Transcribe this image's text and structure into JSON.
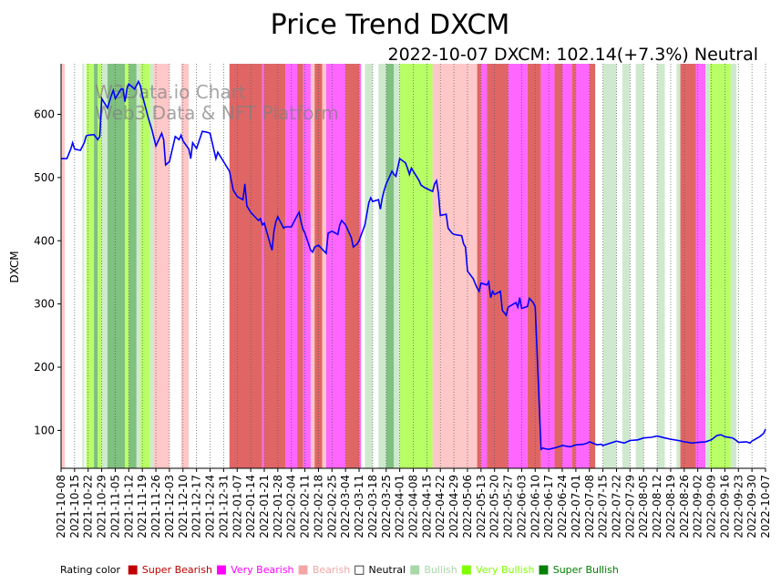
{
  "chart_data": {
    "type": "line",
    "title": "Price Trend DXCM",
    "subtitle": "2022-10-07 DXCM: 102.14(+7.3%) Neutral",
    "ylabel": "DXCM",
    "xlabel": "",
    "watermark_line1": "W3Data.io Chart",
    "watermark_line2": "Web3 Data & NFT Platform",
    "ylim": [
      40,
      680
    ],
    "yticks": [
      100,
      200,
      300,
      400,
      500,
      600
    ],
    "x_start": "2021-10-08",
    "x_end": "2022-10-07",
    "xticks": [
      "2021-10-08",
      "2021-10-15",
      "2021-10-22",
      "2021-10-29",
      "2021-11-05",
      "2021-11-12",
      "2021-11-19",
      "2021-11-26",
      "2021-12-03",
      "2021-12-10",
      "2021-12-17",
      "2021-12-24",
      "2021-12-31",
      "2022-01-07",
      "2022-01-14",
      "2022-01-21",
      "2022-01-28",
      "2022-02-04",
      "2022-02-11",
      "2022-02-18",
      "2022-02-25",
      "2022-03-04",
      "2022-03-11",
      "2022-03-18",
      "2022-03-25",
      "2022-04-01",
      "2022-04-08",
      "2022-04-15",
      "2022-04-22",
      "2022-04-29",
      "2022-05-06",
      "2022-05-13",
      "2022-05-20",
      "2022-05-27",
      "2022-06-03",
      "2022-06-10",
      "2022-06-17",
      "2022-06-24",
      "2022-07-01",
      "2022-07-08",
      "2022-07-15",
      "2022-07-22",
      "2022-07-29",
      "2022-08-05",
      "2022-08-12",
      "2022-08-19",
      "2022-08-26",
      "2022-09-02",
      "2022-09-09",
      "2022-09-16",
      "2022-09-23",
      "2022-09-30",
      "2022-10-07"
    ],
    "series": [
      {
        "name": "DXCM",
        "color": "#0000ff",
        "points": [
          [
            "2021-10-08",
            530
          ],
          [
            "2021-10-11",
            530
          ],
          [
            "2021-10-13",
            545
          ],
          [
            "2021-10-14",
            555
          ],
          [
            "2021-10-15",
            545
          ],
          [
            "2021-10-18",
            543
          ],
          [
            "2021-10-20",
            555
          ],
          [
            "2021-10-21",
            566
          ],
          [
            "2021-10-22",
            567
          ],
          [
            "2021-10-25",
            568
          ],
          [
            "2021-10-27",
            560
          ],
          [
            "2021-10-28",
            565
          ],
          [
            "2021-10-29",
            625
          ],
          [
            "2021-11-01",
            610
          ],
          [
            "2021-11-03",
            630
          ],
          [
            "2021-11-04",
            638
          ],
          [
            "2021-11-05",
            625
          ],
          [
            "2021-11-08",
            640
          ],
          [
            "2021-11-09",
            640
          ],
          [
            "2021-11-10",
            620
          ],
          [
            "2021-11-11",
            640
          ],
          [
            "2021-11-12",
            648
          ],
          [
            "2021-11-15",
            640
          ],
          [
            "2021-11-17",
            652
          ],
          [
            "2021-11-18",
            645
          ],
          [
            "2021-11-19",
            630
          ],
          [
            "2021-11-22",
            595
          ],
          [
            "2021-11-24",
            575
          ],
          [
            "2021-11-26",
            550
          ],
          [
            "2021-11-29",
            570
          ],
          [
            "2021-11-30",
            560
          ],
          [
            "2021-12-01",
            520
          ],
          [
            "2021-12-03",
            525
          ],
          [
            "2021-12-06",
            565
          ],
          [
            "2021-12-08",
            560
          ],
          [
            "2021-12-09",
            567
          ],
          [
            "2021-12-10",
            558
          ],
          [
            "2021-12-13",
            545
          ],
          [
            "2021-12-14",
            530
          ],
          [
            "2021-12-15",
            555
          ],
          [
            "2021-12-17",
            546
          ],
          [
            "2021-12-20",
            573
          ],
          [
            "2021-12-22",
            572
          ],
          [
            "2021-12-24",
            570
          ],
          [
            "2021-12-27",
            530
          ],
          [
            "2021-12-28",
            540
          ],
          [
            "2021-12-31",
            525
          ],
          [
            "2022-01-03",
            510
          ],
          [
            "2022-01-05",
            480
          ],
          [
            "2022-01-07",
            470
          ],
          [
            "2022-01-10",
            465
          ],
          [
            "2022-01-11",
            490
          ],
          [
            "2022-01-12",
            455
          ],
          [
            "2022-01-14",
            445
          ],
          [
            "2022-01-18",
            432
          ],
          [
            "2022-01-19",
            435
          ],
          [
            "2022-01-20",
            425
          ],
          [
            "2022-01-21",
            428
          ],
          [
            "2022-01-24",
            395
          ],
          [
            "2022-01-25",
            385
          ],
          [
            "2022-01-26",
            415
          ],
          [
            "2022-01-27",
            430
          ],
          [
            "2022-01-28",
            438
          ],
          [
            "2022-01-31",
            420
          ],
          [
            "2022-02-01",
            422
          ],
          [
            "2022-02-04",
            422
          ],
          [
            "2022-02-07",
            440
          ],
          [
            "2022-02-08",
            445
          ],
          [
            "2022-02-09",
            430
          ],
          [
            "2022-02-10",
            418
          ],
          [
            "2022-02-11",
            412
          ],
          [
            "2022-02-14",
            385
          ],
          [
            "2022-02-15",
            382
          ],
          [
            "2022-02-16",
            390
          ],
          [
            "2022-02-18",
            393
          ],
          [
            "2022-02-22",
            380
          ],
          [
            "2022-02-23",
            412
          ],
          [
            "2022-02-25",
            415
          ],
          [
            "2022-02-28",
            410
          ],
          [
            "2022-03-01",
            425
          ],
          [
            "2022-03-02",
            432
          ],
          [
            "2022-03-04",
            425
          ],
          [
            "2022-03-07",
            405
          ],
          [
            "2022-03-08",
            390
          ],
          [
            "2022-03-10",
            395
          ],
          [
            "2022-03-11",
            400
          ],
          [
            "2022-03-14",
            425
          ],
          [
            "2022-03-16",
            460
          ],
          [
            "2022-03-17",
            468
          ],
          [
            "2022-03-18",
            462
          ],
          [
            "2022-03-21",
            465
          ],
          [
            "2022-03-22",
            450
          ],
          [
            "2022-03-23",
            468
          ],
          [
            "2022-03-24",
            480
          ],
          [
            "2022-03-25",
            490
          ],
          [
            "2022-03-28",
            510
          ],
          [
            "2022-03-29",
            505
          ],
          [
            "2022-03-30",
            502
          ],
          [
            "2022-04-01",
            530
          ],
          [
            "2022-04-04",
            523
          ],
          [
            "2022-04-05",
            515
          ],
          [
            "2022-04-06",
            505
          ],
          [
            "2022-04-07",
            515
          ],
          [
            "2022-04-08",
            510
          ],
          [
            "2022-04-11",
            495
          ],
          [
            "2022-04-12",
            488
          ],
          [
            "2022-04-14",
            484
          ],
          [
            "2022-04-18",
            478
          ],
          [
            "2022-04-19",
            490
          ],
          [
            "2022-04-20",
            495
          ],
          [
            "2022-04-21",
            475
          ],
          [
            "2022-04-22",
            440
          ],
          [
            "2022-04-25",
            442
          ],
          [
            "2022-04-26",
            420
          ],
          [
            "2022-04-28",
            412
          ],
          [
            "2022-04-29",
            410
          ],
          [
            "2022-05-03",
            408
          ],
          [
            "2022-05-04",
            395
          ],
          [
            "2022-05-05",
            390
          ],
          [
            "2022-05-06",
            352
          ],
          [
            "2022-05-09",
            340
          ],
          [
            "2022-05-10",
            332
          ],
          [
            "2022-05-11",
            325
          ],
          [
            "2022-05-12",
            320
          ],
          [
            "2022-05-13",
            333
          ],
          [
            "2022-05-16",
            330
          ],
          [
            "2022-05-17",
            335
          ],
          [
            "2022-05-18",
            310
          ],
          [
            "2022-05-19",
            320
          ],
          [
            "2022-05-20",
            315
          ],
          [
            "2022-05-23",
            320
          ],
          [
            "2022-05-24",
            290
          ],
          [
            "2022-05-26",
            282
          ],
          [
            "2022-05-27",
            295
          ],
          [
            "2022-05-31",
            302
          ],
          [
            "2022-06-01",
            295
          ],
          [
            "2022-06-02",
            310
          ],
          [
            "2022-06-03",
            293
          ],
          [
            "2022-06-06",
            296
          ],
          [
            "2022-06-07",
            309
          ],
          [
            "2022-06-09",
            302
          ],
          [
            "2022-06-10",
            295
          ],
          [
            "2022-06-13",
            70
          ],
          [
            "2022-06-14",
            72
          ],
          [
            "2022-06-15",
            71
          ],
          [
            "2022-06-17",
            70
          ],
          [
            "2022-06-21",
            73
          ],
          [
            "2022-06-23",
            75
          ],
          [
            "2022-06-24",
            76
          ],
          [
            "2022-06-28",
            74
          ],
          [
            "2022-06-30",
            76
          ],
          [
            "2022-07-01",
            77
          ],
          [
            "2022-07-05",
            78
          ],
          [
            "2022-07-07",
            80
          ],
          [
            "2022-07-08",
            82
          ],
          [
            "2022-07-12",
            77
          ],
          [
            "2022-07-14",
            78
          ],
          [
            "2022-07-15",
            76
          ],
          [
            "2022-07-19",
            80
          ],
          [
            "2022-07-22",
            83
          ],
          [
            "2022-07-26",
            80
          ],
          [
            "2022-07-29",
            84
          ],
          [
            "2022-08-02",
            85
          ],
          [
            "2022-08-05",
            88
          ],
          [
            "2022-08-09",
            89
          ],
          [
            "2022-08-12",
            91
          ],
          [
            "2022-08-16",
            88
          ],
          [
            "2022-08-19",
            86
          ],
          [
            "2022-08-23",
            84
          ],
          [
            "2022-08-26",
            82
          ],
          [
            "2022-08-30",
            80
          ],
          [
            "2022-09-02",
            81
          ],
          [
            "2022-09-06",
            82
          ],
          [
            "2022-09-09",
            85
          ],
          [
            "2022-09-12",
            92
          ],
          [
            "2022-09-14",
            93
          ],
          [
            "2022-09-16",
            90
          ],
          [
            "2022-09-20",
            88
          ],
          [
            "2022-09-22",
            84
          ],
          [
            "2022-09-23",
            81
          ],
          [
            "2022-09-27",
            82
          ],
          [
            "2022-09-29",
            80
          ],
          [
            "2022-09-30",
            83
          ],
          [
            "2022-10-04",
            90
          ],
          [
            "2022-10-06",
            95
          ],
          [
            "2022-10-07",
            102
          ]
        ]
      }
    ],
    "rating_bands": [
      [
        "2021-10-08",
        "2021-10-10",
        "bearish"
      ],
      [
        "2021-10-10",
        "2021-10-12",
        "neutral"
      ],
      [
        "2021-10-19",
        "2021-10-20",
        "bullish"
      ],
      [
        "2021-10-21",
        "2021-10-25",
        "very_bullish"
      ],
      [
        "2021-10-25",
        "2021-10-27",
        "super_bullish"
      ],
      [
        "2021-10-27",
        "2021-10-29",
        "very_bullish"
      ],
      [
        "2021-10-29",
        "2021-11-01",
        "bullish"
      ],
      [
        "2021-11-01",
        "2021-11-10",
        "super_bullish"
      ],
      [
        "2021-11-10",
        "2021-11-12",
        "very_bullish"
      ],
      [
        "2021-11-12",
        "2021-11-16",
        "super_bullish"
      ],
      [
        "2021-11-16",
        "2021-11-18",
        "bullish"
      ],
      [
        "2021-11-18",
        "2021-11-23",
        "very_bullish"
      ],
      [
        "2021-11-23",
        "2021-11-25",
        "bullish"
      ],
      [
        "2021-11-25",
        "2021-12-03",
        "bearish"
      ],
      [
        "2021-12-09",
        "2021-12-13",
        "bearish"
      ],
      [
        "2021-12-27",
        "2021-12-29",
        "neutral"
      ],
      [
        "2022-01-03",
        "2022-01-20",
        "super_bearish"
      ],
      [
        "2022-01-20",
        "2022-01-21",
        "very_bearish"
      ],
      [
        "2022-01-21",
        "2022-02-01",
        "super_bearish"
      ],
      [
        "2022-02-01",
        "2022-02-07",
        "very_bearish"
      ],
      [
        "2022-02-07",
        "2022-02-10",
        "super_bearish"
      ],
      [
        "2022-02-10",
        "2022-02-14",
        "very_bearish"
      ],
      [
        "2022-02-14",
        "2022-02-16",
        "bearish"
      ],
      [
        "2022-02-16",
        "2022-02-20",
        "super_bearish"
      ],
      [
        "2022-02-20",
        "2022-02-22",
        "bearish"
      ],
      [
        "2022-02-22",
        "2022-03-04",
        "very_bearish"
      ],
      [
        "2022-03-04",
        "2022-03-11",
        "super_bearish"
      ],
      [
        "2022-03-11",
        "2022-03-12",
        "very_bearish"
      ],
      [
        "2022-03-14",
        "2022-03-18",
        "bullish"
      ],
      [
        "2022-03-21",
        "2022-03-25",
        "bullish"
      ],
      [
        "2022-03-25",
        "2022-03-29",
        "super_bullish"
      ],
      [
        "2022-03-29",
        "2022-04-01",
        "bullish"
      ],
      [
        "2022-04-01",
        "2022-04-18",
        "very_bullish"
      ],
      [
        "2022-04-18",
        "2022-04-22",
        "bearish"
      ],
      [
        "2022-04-22",
        "2022-05-11",
        "bearish"
      ],
      [
        "2022-05-11",
        "2022-05-13",
        "super_bearish"
      ],
      [
        "2022-05-13",
        "2022-05-16",
        "very_bearish"
      ],
      [
        "2022-05-16",
        "2022-05-27",
        "super_bearish"
      ],
      [
        "2022-05-27",
        "2022-06-06",
        "very_bearish"
      ],
      [
        "2022-06-06",
        "2022-06-13",
        "super_bearish"
      ],
      [
        "2022-06-13",
        "2022-06-20",
        "very_bearish"
      ],
      [
        "2022-06-20",
        "2022-06-24",
        "super_bearish"
      ],
      [
        "2022-06-24",
        "2022-06-29",
        "very_bearish"
      ],
      [
        "2022-06-29",
        "2022-07-01",
        "super_bearish"
      ],
      [
        "2022-07-01",
        "2022-07-08",
        "very_bearish"
      ],
      [
        "2022-07-08",
        "2022-07-11",
        "super_bearish"
      ],
      [
        "2022-07-15",
        "2022-07-22",
        "bullish"
      ],
      [
        "2022-07-25",
        "2022-07-29",
        "bullish"
      ],
      [
        "2022-08-01",
        "2022-08-05",
        "bullish"
      ],
      [
        "2022-08-12",
        "2022-08-16",
        "bullish"
      ],
      [
        "2022-08-22",
        "2022-08-24",
        "bullish"
      ],
      [
        "2022-08-24",
        "2022-09-01",
        "super_bearish"
      ],
      [
        "2022-09-01",
        "2022-09-06",
        "very_bearish"
      ],
      [
        "2022-09-06",
        "2022-09-08",
        "bullish"
      ],
      [
        "2022-09-08",
        "2022-09-19",
        "very_bullish"
      ],
      [
        "2022-09-19",
        "2022-09-22",
        "bullish"
      ]
    ]
  },
  "legend": {
    "title": "Rating color",
    "items": [
      {
        "label": "Super Bearish",
        "color": "#c00000",
        "square": "■"
      },
      {
        "label": "Very Bearish",
        "color": "#ff00ff",
        "square": "■"
      },
      {
        "label": "Bearish",
        "color": "#f4a6a6",
        "square": "■"
      },
      {
        "label": "Neutral",
        "color": "#000000",
        "square": "□"
      },
      {
        "label": "Bullish",
        "color": "#a8d8a8",
        "square": "■"
      },
      {
        "label": "Very Bullish",
        "color": "#7fff00",
        "square": "■"
      },
      {
        "label": "Super Bullish",
        "color": "#008000",
        "square": "■"
      }
    ]
  },
  "band_colors": {
    "super_bearish": "#e06666",
    "very_bearish": "#ff66ff",
    "bearish": "#ffc8c8",
    "neutral": "#ffffff",
    "bullish": "#cfe9cf",
    "very_bullish": "#b8ff66",
    "super_bullish": "#80c080"
  }
}
